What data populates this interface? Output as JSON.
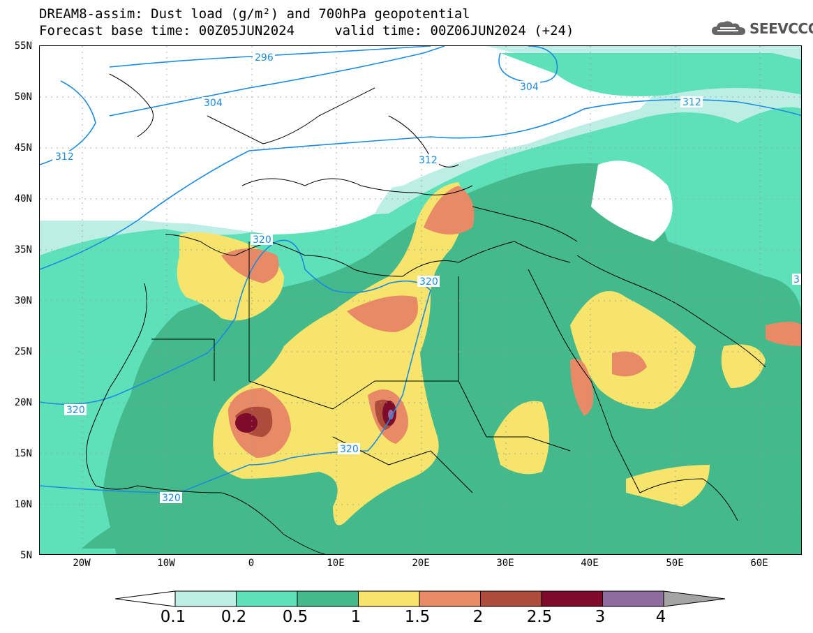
{
  "title": {
    "line1": "DREAM8-assim: Dust load (g/m²) and 700hPa geopotential",
    "line2": "Forecast base time: 00Z05JUN2024     valid time: 00Z06JUN2024 (+24)"
  },
  "brand": {
    "name": "SEEVCCC",
    "icon": "cloud-logo-icon"
  },
  "axes": {
    "lat_labels": [
      "55N",
      "50N",
      "45N",
      "40N",
      "35N",
      "30N",
      "25N",
      "20N",
      "15N",
      "10N",
      "5N"
    ],
    "lon_labels": [
      "20W",
      "10W",
      "0",
      "10E",
      "20E",
      "30E",
      "40E",
      "50E",
      "60E"
    ],
    "lat_range": [
      5,
      55
    ],
    "lon_range": [
      -25,
      65
    ]
  },
  "contour_labels": [
    "296",
    "304",
    "304",
    "312",
    "312",
    "312",
    "320",
    "320",
    "320",
    "320",
    "320",
    "3"
  ],
  "colorbar": {
    "ticks": [
      "0.1",
      "0.2",
      "0.5",
      "1",
      "1.5",
      "2",
      "2.5",
      "3",
      "4"
    ],
    "colors": [
      "#bdeee6",
      "#5ee0b8",
      "#44b98b",
      "#f6e46c",
      "#e88a66",
      "#ae4c3c",
      "#7e0b2a",
      "#8e6c9e",
      "#a4a4a4"
    ]
  }
}
